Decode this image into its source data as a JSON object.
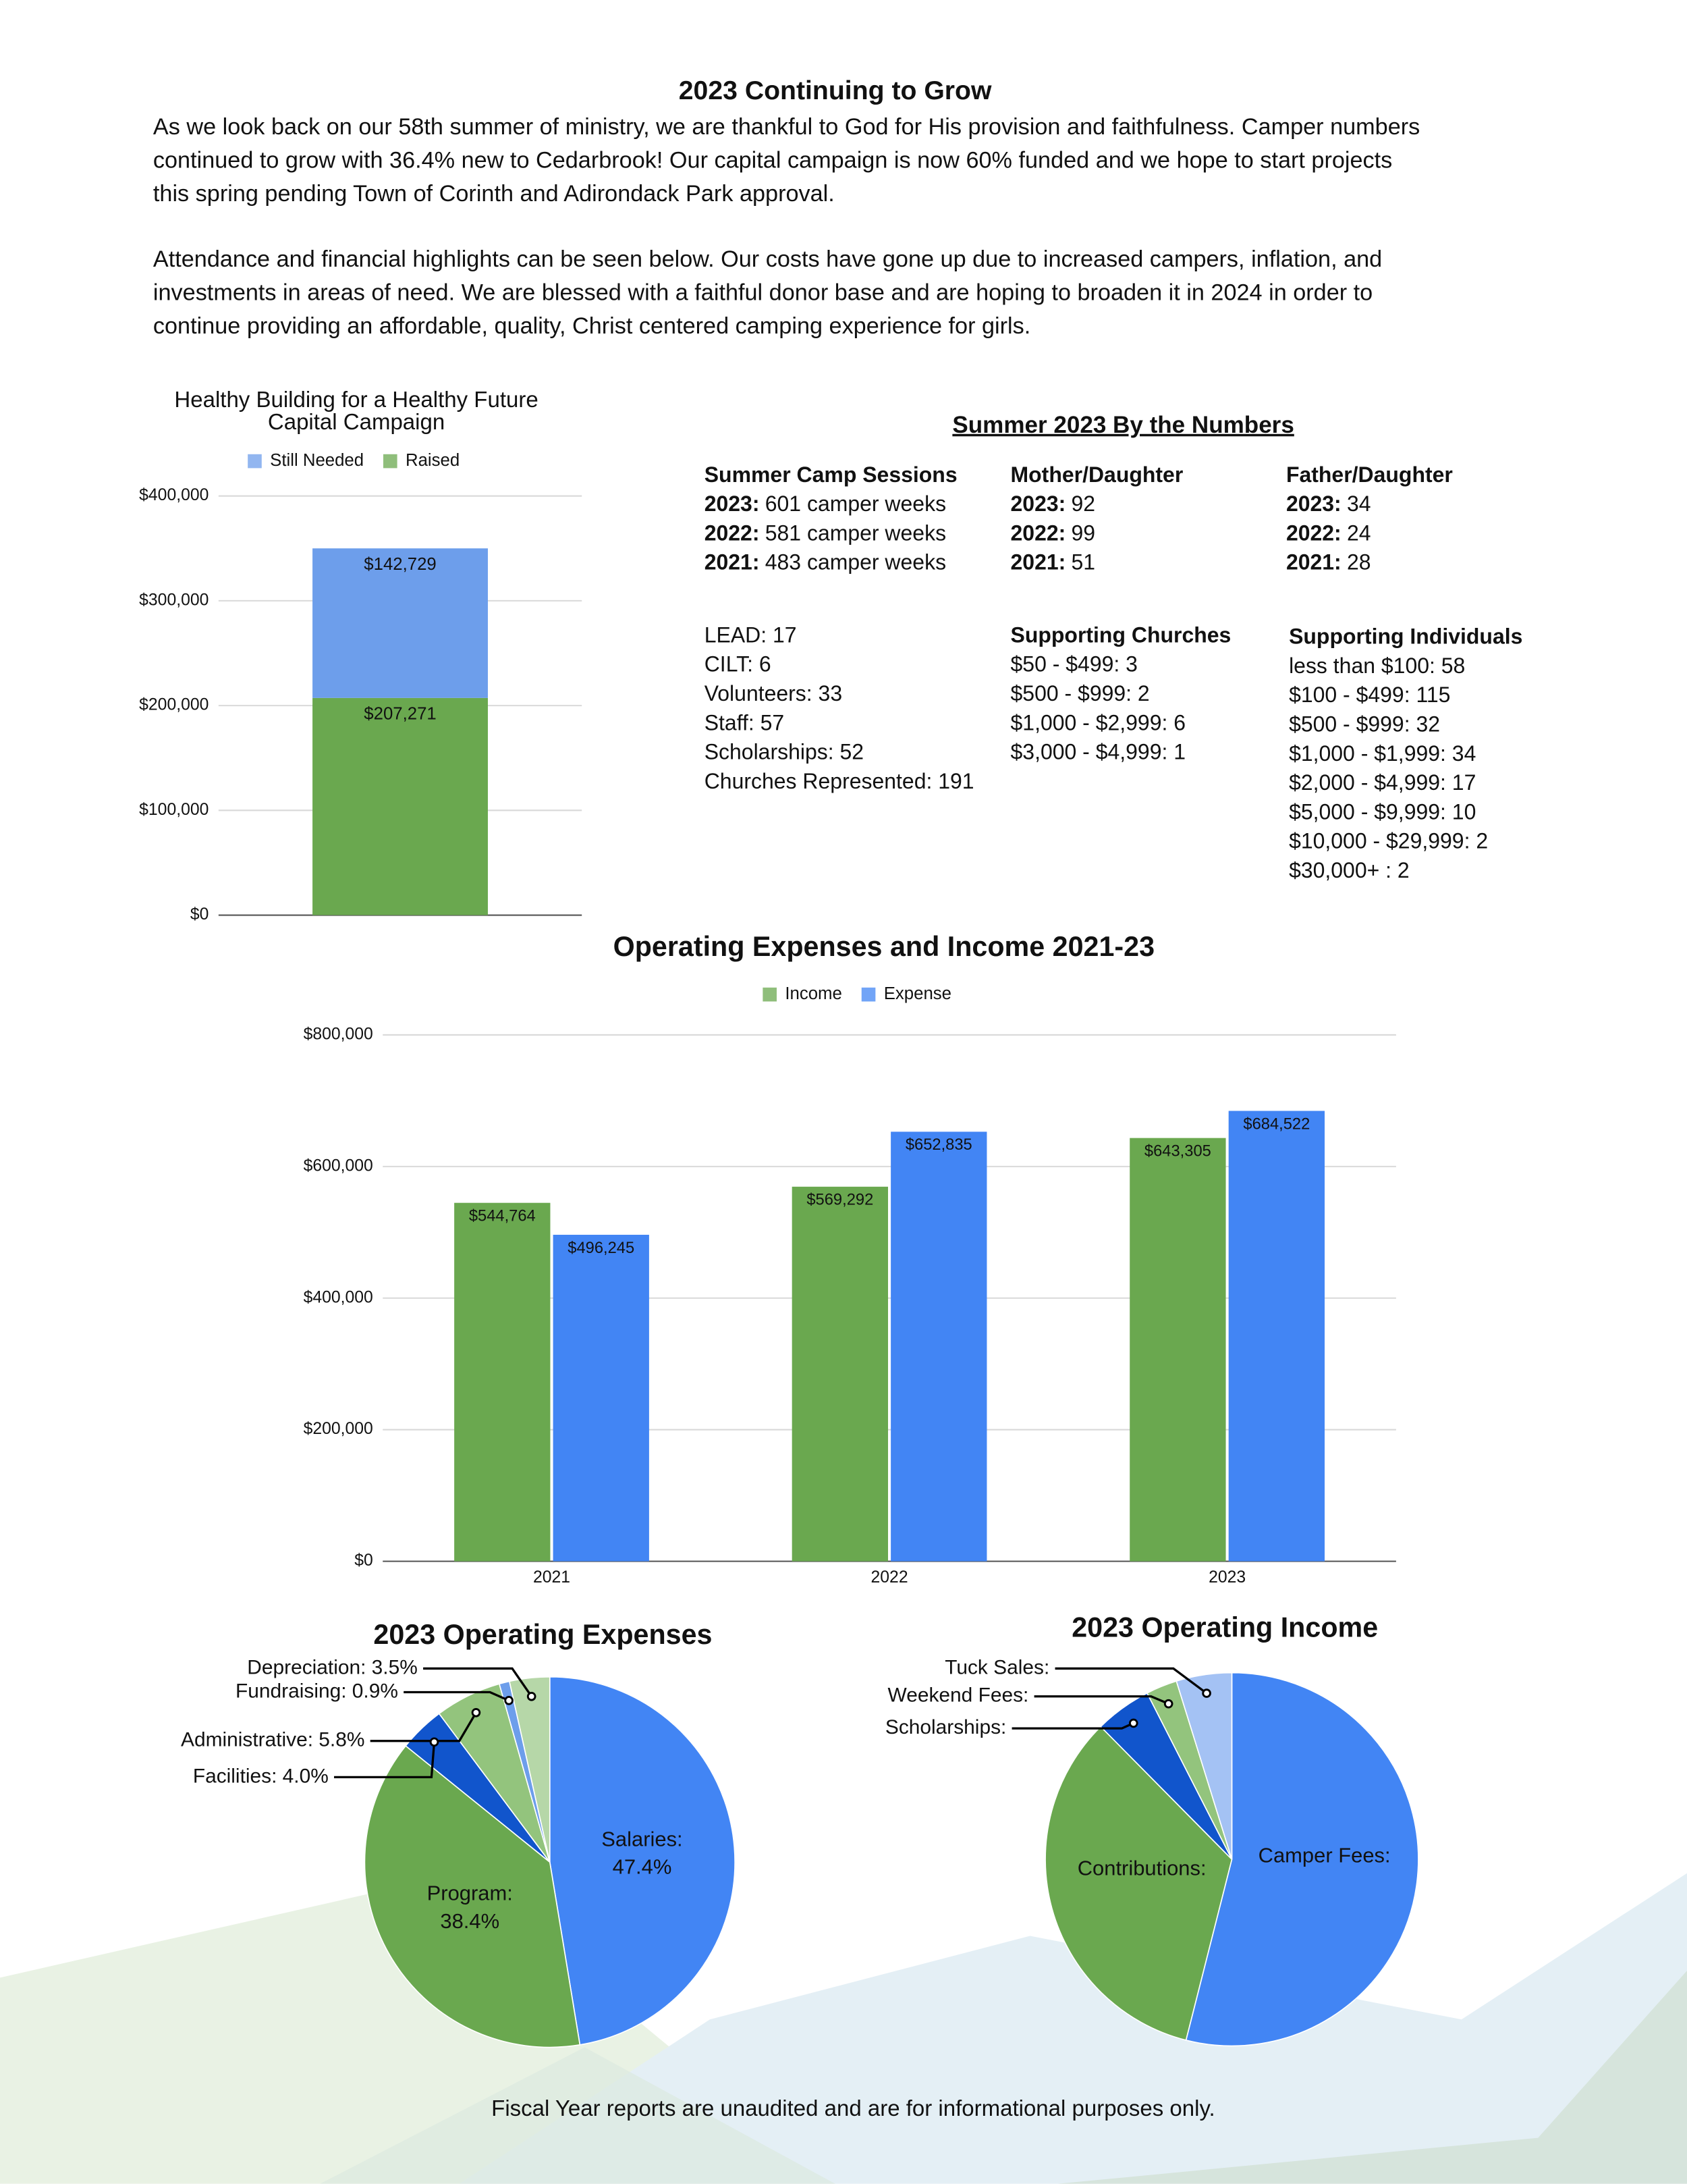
{
  "document": {
    "title": "2023 Continuing to Grow",
    "paragraphs": [
      [
        "As we look back on our 58th summer of ministry, we are thankful to God for His provision and faithfulness. Camper numbers",
        "continued to grow with 36.4% new to Cedarbrook! Our capital campaign is now 60% funded and we hope to start projects",
        "this spring pending Town of Corinth and Adirondack Park approval."
      ],
      [
        "Attendance and financial highlights can be seen below. Our costs have gone up due to increased campers, inflation, and",
        "investments in areas of need. We are blessed with a faithful donor base and are hoping to broaden it in 2024 in order to",
        "continue providing an affordable, quality, Christ centered camping experience for girls."
      ]
    ],
    "numbers": {
      "title": "Summer 2023 By the Numbers",
      "groups": [
        {
          "heading": "Summer Camp Sessions",
          "items": [
            {
              "label": "2023:",
              "text": "601 camper weeks"
            },
            {
              "label": "2022:",
              "text": "581 camper weeks"
            },
            {
              "label": "2021:",
              "text": "483 camper weeks"
            }
          ]
        },
        {
          "heading": "Mother/Daughter",
          "items": [
            {
              "label": "2023:",
              "text": "92"
            },
            {
              "label": "2022:",
              "text": "99"
            },
            {
              "label": "2021:",
              "text": "51"
            }
          ]
        },
        {
          "heading": "Father/Daughter",
          "items": [
            {
              "label": "2023:",
              "text": "34"
            },
            {
              "label": "2022:",
              "text": "24"
            },
            {
              "label": "2021:",
              "text": "28"
            }
          ]
        },
        {
          "items": [
            "LEAD: 17",
            "CILT: 6",
            "Volunteers: 33",
            "Staff: 57",
            "Scholarships: 52",
            "Churches Represented: 191"
          ]
        },
        {
          "heading": "Supporting Churches",
          "items": [
            "$50 - $499: 3",
            "$500 - $999: 2",
            "$1,000 - $2,999: 6",
            "$3,000 - $4,999: 1"
          ]
        },
        {
          "heading": "Supporting Individuals",
          "items": [
            "less than $100: 58",
            "$100 - $499: 115",
            "$500 - $999: 32",
            "$1,000 - $1,999: 34",
            "$2,000 - $4,999: 17",
            "$5,000 - $9,999: 10",
            "$10,000 - $29,999: 2",
            "$30,000+ : 2"
          ]
        }
      ]
    },
    "footer": "Fiscal Year reports are unaudited and are for informational purposes only."
  },
  "chart_data": [
    {
      "type": "stacked_bar",
      "title": [
        "Healthy Building for a Healthy Future",
        "Capital Campaign"
      ],
      "categories": [
        null
      ],
      "series": [
        {
          "name": "Still Needed",
          "color": "#6d9eeb",
          "values": [
            142729
          ],
          "value_labels": [
            "$142,729"
          ]
        },
        {
          "name": "Raised",
          "color": "#6aa84f",
          "values": [
            207271
          ],
          "value_labels": [
            "$207,271"
          ]
        }
      ],
      "ylim": [
        0,
        400000
      ],
      "yticks": [
        {
          "value": 0,
          "label": "$0"
        },
        {
          "value": 100000,
          "label": "$100,000"
        },
        {
          "value": 200000,
          "label": "$200,000"
        },
        {
          "value": 300000,
          "label": "$300,000"
        },
        {
          "value": 400000,
          "label": "$400,000"
        }
      ],
      "grid": true,
      "legend": "top"
    },
    {
      "type": "bar",
      "title": "Operating Expenses and Income 2021-23",
      "categories": [
        "2021",
        "2022",
        "2023"
      ],
      "series": [
        {
          "name": "Income",
          "color": "#6aa84f",
          "values": [
            544764,
            569292,
            643305
          ],
          "value_labels": [
            "$544,764",
            "$569,292",
            "$643,305"
          ]
        },
        {
          "name": "Expense",
          "color": "#4285f4",
          "values": [
            496245,
            652835,
            684522
          ],
          "value_labels": [
            "$496,245",
            "$652,835",
            "$684,522"
          ]
        }
      ],
      "ylim": [
        0,
        800000
      ],
      "yticks": [
        {
          "value": 0,
          "label": "$0"
        },
        {
          "value": 200000,
          "label": "$200,000"
        },
        {
          "value": 400000,
          "label": "$400,000"
        },
        {
          "value": 600000,
          "label": "$600,000"
        },
        {
          "value": 800000,
          "label": "$800,000"
        }
      ],
      "grid": true,
      "legend": "top"
    },
    {
      "type": "pie",
      "title": "2023 Operating Expenses",
      "categories": [
        "Salaries:",
        "Program:",
        "Facilities:",
        "Administrative:",
        "Fundraising:",
        "Depreciation:"
      ],
      "values": [
        47.4,
        38.4,
        4.0,
        5.8,
        0.9,
        3.5
      ],
      "value_labels": [
        "47.4%",
        "38.4%",
        "4.0%",
        "5.8%",
        "0.9%",
        "3.5%"
      ],
      "colors": [
        "#4285f4",
        "#6aa84f",
        "#1155cc",
        "#93c47d",
        "#6d9eeb",
        "#b6d7a8"
      ]
    },
    {
      "type": "pie",
      "title": "2023 Operating Income",
      "categories": [
        "Camper Fees:",
        "Contributions:",
        "Scholarships:",
        "Weekend Fees:",
        "Tuck Sales:"
      ],
      "values": [
        53.9,
        33.6,
        4.9,
        2.7,
        4.8
      ],
      "colors": [
        "#4285f4",
        "#6aa84f",
        "#1155cc",
        "#93c47d",
        "#a4c2f4"
      ]
    }
  ]
}
